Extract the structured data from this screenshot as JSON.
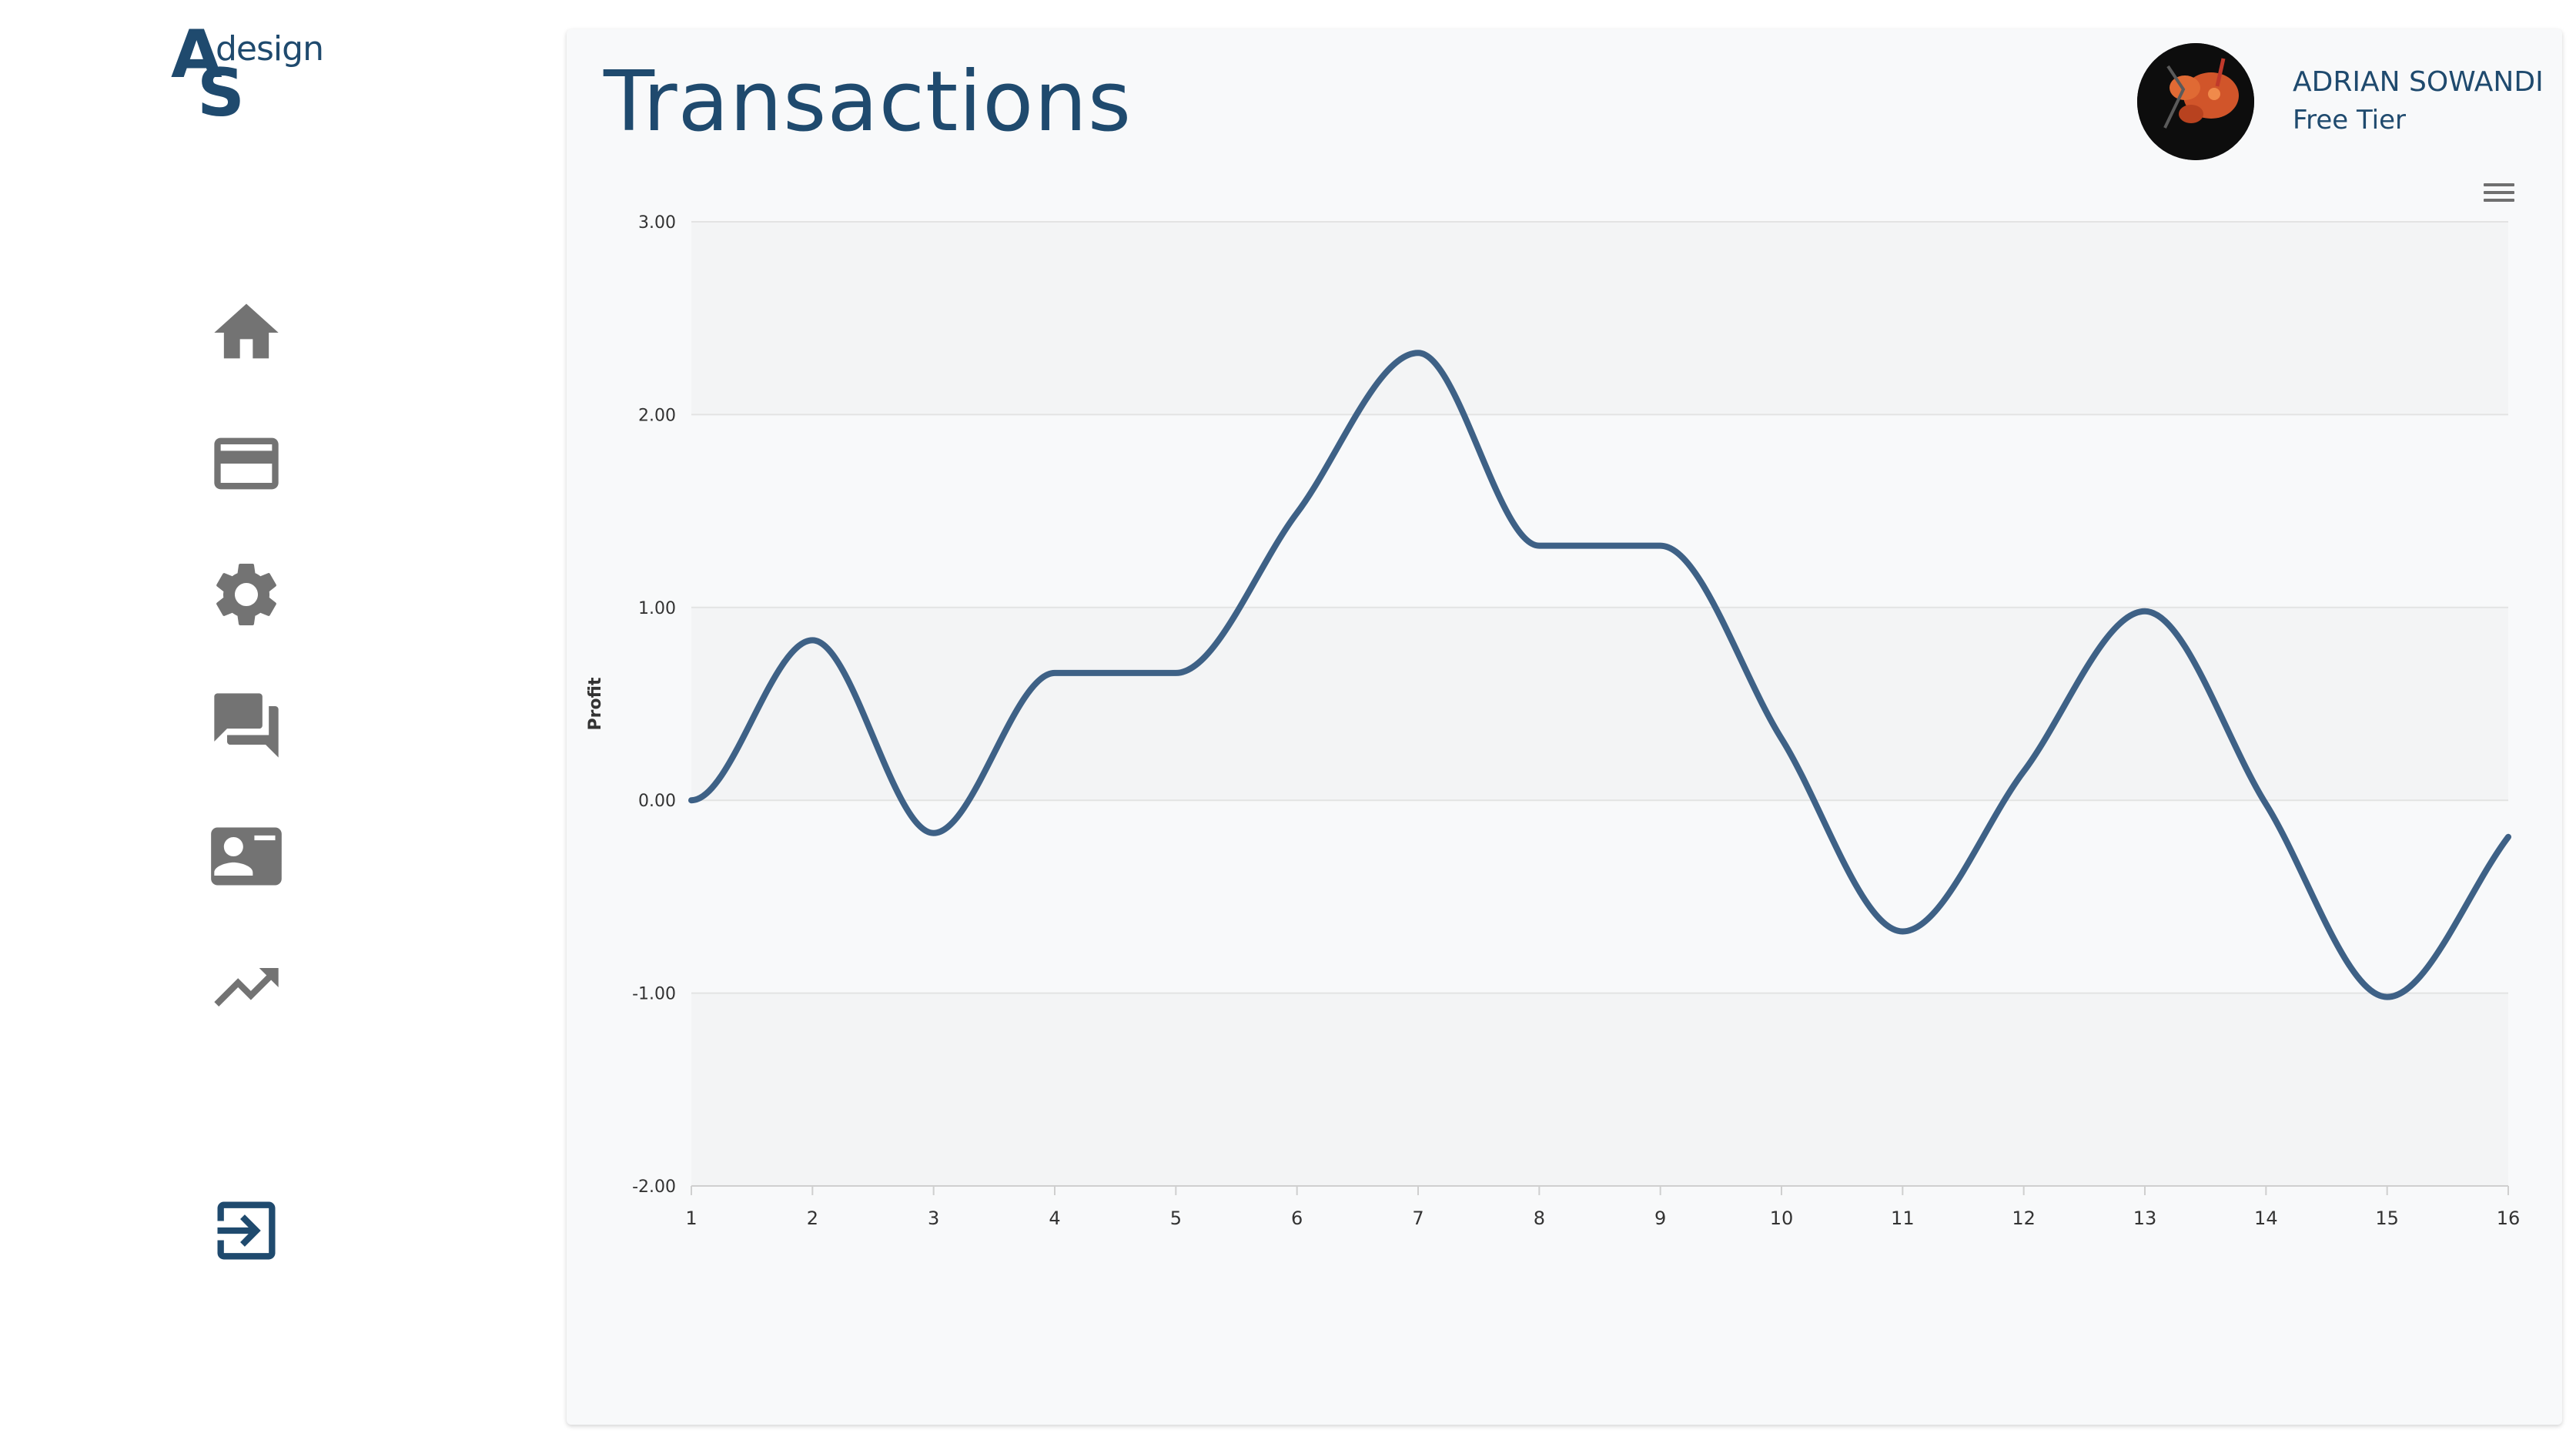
{
  "logo": {
    "letter_a": "A",
    "letter_s": "S",
    "word": "design"
  },
  "nav": [
    {
      "id": "home",
      "icon": "home-icon"
    },
    {
      "id": "cards",
      "icon": "credit-card-icon"
    },
    {
      "id": "settings",
      "icon": "gear-icon"
    },
    {
      "id": "messages",
      "icon": "chat-bubbles-icon"
    },
    {
      "id": "contacts",
      "icon": "contact-card-icon"
    },
    {
      "id": "analytics",
      "icon": "trending-up-icon"
    }
  ],
  "logout": {
    "icon": "logout-icon"
  },
  "header": {
    "title": "Transactions"
  },
  "user": {
    "name": "ADRIAN SOWANDI",
    "tier": "Free Tier",
    "avatar": "avatar-image"
  },
  "chart_menu": {
    "icon": "hamburger-menu-icon"
  },
  "colors": {
    "brand": "#1f4a6e",
    "line": "#3e6186",
    "icon_gray": "#737373",
    "card_bg": "#f8f9fa"
  },
  "chart_data": {
    "type": "line",
    "x": [
      1,
      2,
      3,
      4,
      5,
      6,
      7,
      8,
      9,
      10,
      11,
      12,
      13,
      14,
      15,
      16
    ],
    "series": [
      {
        "values": [
          0.0,
          0.83,
          -0.17,
          0.66,
          0.66,
          1.49,
          2.32,
          1.32,
          1.32,
          0.32,
          -0.68,
          0.15,
          0.98,
          -0.02,
          -1.02,
          -0.19
        ]
      }
    ],
    "ylabel": "Profit",
    "xlabel": "",
    "ylim": [
      -2,
      3
    ],
    "yticks": [
      "3.00",
      "2.00",
      "1.00",
      "0.00",
      "-1.00",
      "-2.00"
    ],
    "xticks": [
      "1",
      "2",
      "3",
      "4",
      "5",
      "6",
      "7",
      "8",
      "9",
      "10",
      "11",
      "12",
      "13",
      "14",
      "15",
      "16"
    ],
    "grid": true,
    "legend": "none"
  }
}
